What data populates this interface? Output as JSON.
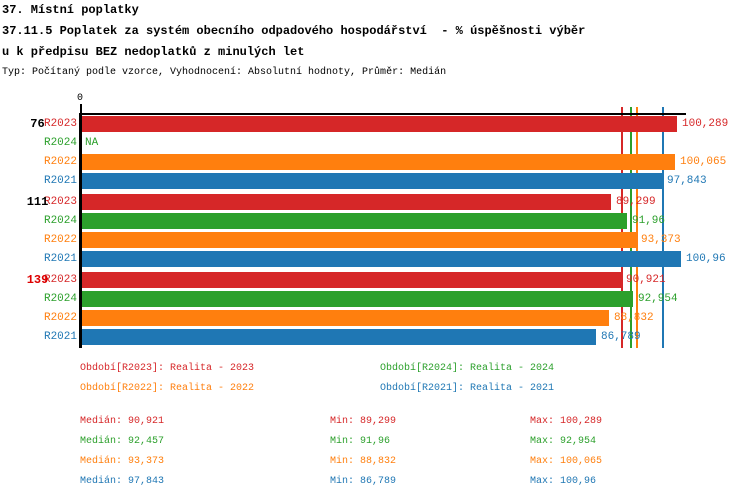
{
  "header": {
    "line1": "37. Místní poplatky",
    "line2": "37.11.5 Poplatek za systém obecního odpadového hospodářství  - % úspěšnosti výběr",
    "line3": "u k předpisu BEZ nedoplatků z minulých let",
    "meta": "Typ: Počítaný podle vzorce, Vyhodnocení: Absolutní hodnoty, Průměr: Medián"
  },
  "series": {
    "R2023": {
      "color": "#d62728",
      "legend": "Období[R2023]: Realita - 2023"
    },
    "R2024": {
      "color": "#2ca02c",
      "legend": "Období[R2024]: Realita - 2024"
    },
    "R2022": {
      "color": "#ff7f0e",
      "legend": "Období[R2022]: Realita - 2022"
    },
    "R2021": {
      "color": "#1f77b4",
      "legend": "Období[R2021]: Realita - 2021"
    }
  },
  "chart_data": {
    "type": "bar",
    "orientation": "horizontal",
    "x_axis": {
      "origin_label": "0",
      "implied_range": [
        0,
        101.7
      ],
      "grid": false
    },
    "series_order": [
      "R2023",
      "R2024",
      "R2022",
      "R2021"
    ],
    "groups": [
      {
        "label": "76",
        "label_color": "#000000",
        "bars": [
          {
            "series": "R2023",
            "value": 100.289,
            "label": "100,289"
          },
          {
            "series": "R2024",
            "value": null,
            "label": "NA"
          },
          {
            "series": "R2022",
            "value": 100.065,
            "label": "100,065"
          },
          {
            "series": "R2021",
            "value": 97.843,
            "label": "97,843"
          }
        ]
      },
      {
        "label": "111",
        "label_color": "#000000",
        "bars": [
          {
            "series": "R2023",
            "value": 89.299,
            "label": "89,299"
          },
          {
            "series": "R2024",
            "value": 91.96,
            "label": "91,96"
          },
          {
            "series": "R2022",
            "value": 93.373,
            "label": "93,373"
          },
          {
            "series": "R2021",
            "value": 100.96,
            "label": "100,96"
          }
        ]
      },
      {
        "label": "139",
        "label_color": "#dd0000",
        "bars": [
          {
            "series": "R2023",
            "value": 90.921,
            "label": "90,921"
          },
          {
            "series": "R2024",
            "value": 92.954,
            "label": "92,954"
          },
          {
            "series": "R2022",
            "value": 88.832,
            "label": "88,832"
          },
          {
            "series": "R2021",
            "value": 86.789,
            "label": "86,789"
          }
        ]
      }
    ],
    "median_lines": [
      {
        "series": "R2023",
        "value": 90.921
      },
      {
        "series": "R2024",
        "value": 92.457
      },
      {
        "series": "R2022",
        "value": 93.373
      },
      {
        "series": "R2021",
        "value": 97.843
      }
    ],
    "legend_position": "bottom"
  },
  "legend_rows": [
    [
      "R2023",
      "R2024"
    ],
    [
      "R2022",
      "R2021"
    ]
  ],
  "stats_labels": {
    "median": "Medián",
    "min": "Min",
    "max": "Max"
  },
  "stats": [
    {
      "series": "R2023",
      "median": "90,921",
      "min": "89,299",
      "max": "100,289"
    },
    {
      "series": "R2024",
      "median": "92,457",
      "min": "91,96",
      "max": "92,954"
    },
    {
      "series": "R2022",
      "median": "93,373",
      "min": "88,832",
      "max": "100,065"
    },
    {
      "series": "R2021",
      "median": "97,843",
      "min": "86,789",
      "max": "100,96"
    }
  ]
}
